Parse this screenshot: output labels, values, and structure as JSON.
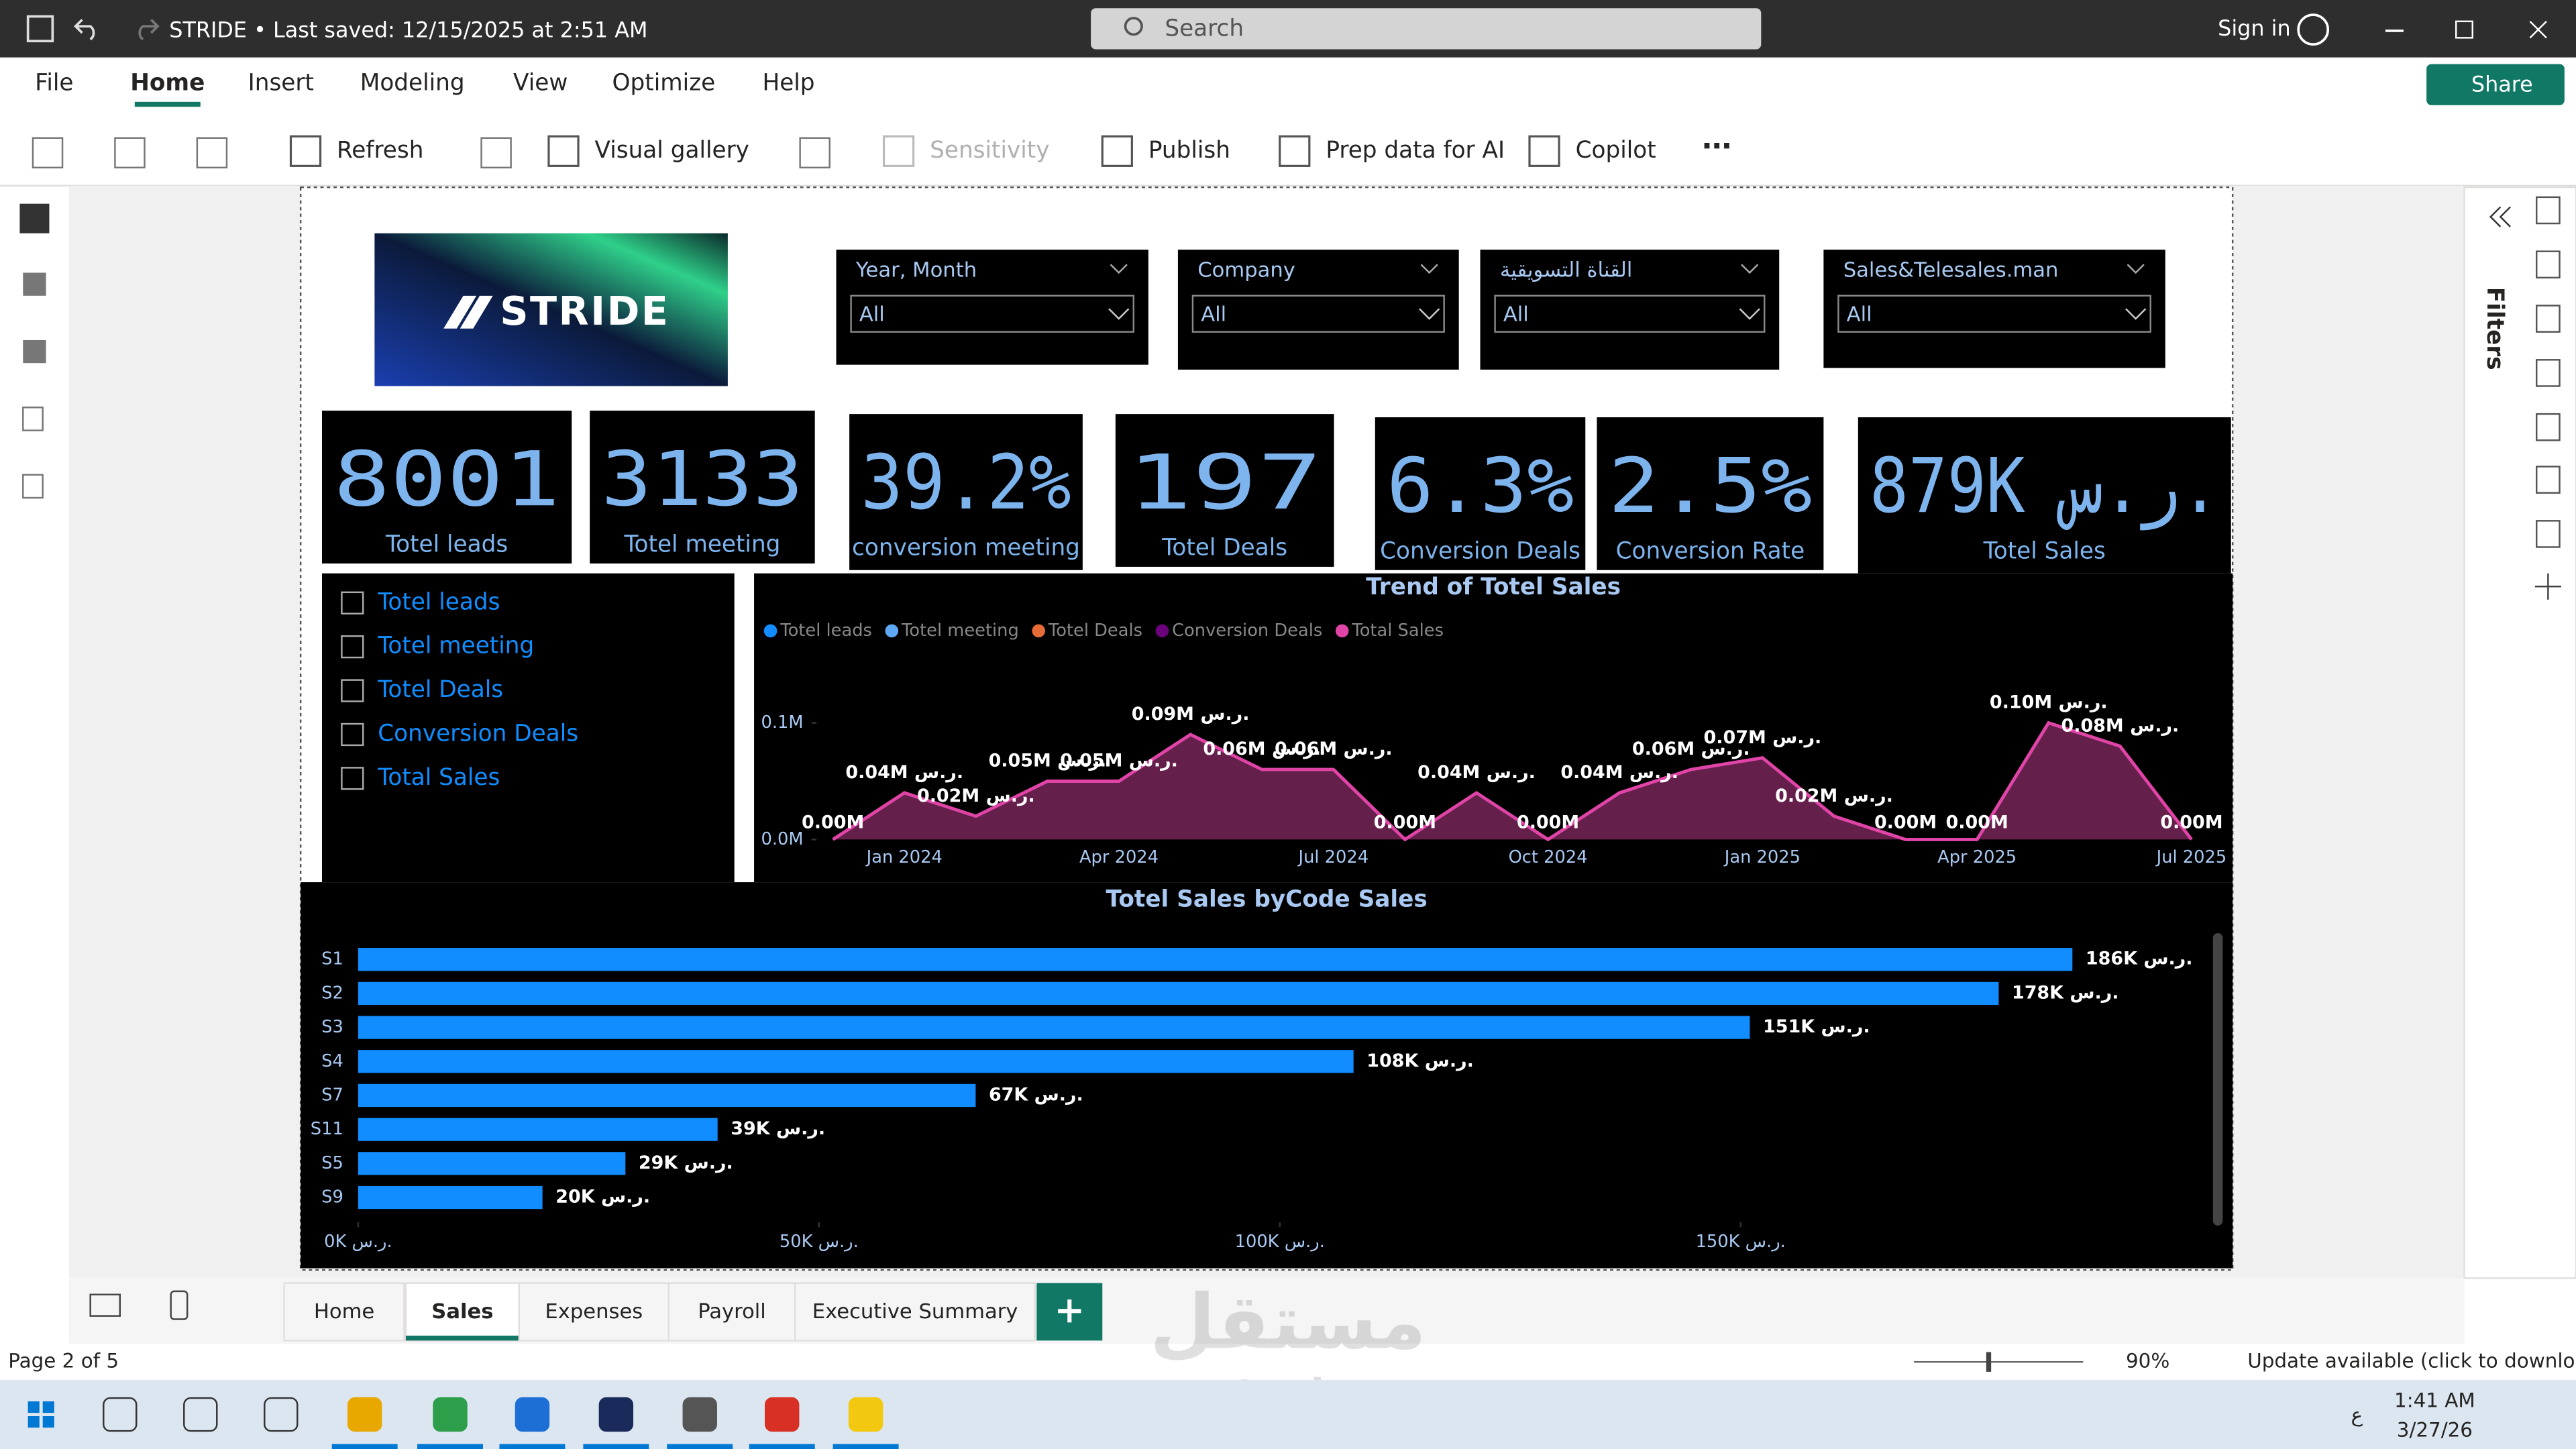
{
  "titlebar": {
    "title": "STRIDE • Last saved: 12/15/2025 at 2:51 AM",
    "search": "Search",
    "sign_in": "Sign in"
  },
  "menu": [
    "File",
    "Home",
    "Insert",
    "Modeling",
    "View",
    "Optimize",
    "Help"
  ],
  "share": "Share",
  "ribbon": [
    "Refresh",
    "Visual gallery",
    "Sensitivity",
    "Publish",
    "Prep data for AI",
    "Copilot"
  ],
  "filters": "Filters",
  "report": {
    "logo": "STRIDE",
    "slicers": [
      {
        "title": "Year, Month",
        "value": "All"
      },
      {
        "title": "Company",
        "value": "All"
      },
      {
        "title": "القناة التسويقية",
        "value": "All"
      },
      {
        "title": "Sales&Telesales.man",
        "value": "All"
      }
    ],
    "kpis": [
      {
        "value": "8001",
        "label": "Totel leads"
      },
      {
        "value": "3133",
        "label": "Totel meeting"
      },
      {
        "value": "39.2%",
        "label": "conversion meeting"
      },
      {
        "value": "197",
        "label": "Totel Deals"
      },
      {
        "value": "6.3%",
        "label": "Conversion Deals"
      },
      {
        "value": "2.5%",
        "label": "Conversion Rate"
      },
      {
        "value": "879K ر.س.",
        "label": "Totel Sales"
      }
    ],
    "fields": [
      "Totel leads",
      "Totel meeting",
      "Totel Deals",
      "Conversion Deals",
      "Total Sales"
    ]
  },
  "chart_data": [
    {
      "type": "line",
      "title": "Trend of Totel Sales",
      "legend": [
        {
          "name": "Totel leads",
          "color": "#118dff"
        },
        {
          "name": "Totel meeting",
          "color": "#5fa8f5"
        },
        {
          "name": "Totel Deals",
          "color": "#e66c37"
        },
        {
          "name": "Conversion Deals",
          "color": "#6b007b"
        },
        {
          "name": "Total Sales",
          "color": "#e044a7"
        }
      ],
      "categories": [
        null,
        "Jan 2024",
        null,
        null,
        "Apr 2024",
        null,
        null,
        "Jul 2024",
        null,
        null,
        "Oct 2024",
        null,
        null,
        "Jan 2025",
        null,
        null,
        "Apr 2025",
        null,
        null,
        "Jul 2025"
      ],
      "series": [
        {
          "name": "Total Sales",
          "color": "#e044a7",
          "values": [
            0.0,
            0.04,
            0.02,
            0.05,
            0.05,
            0.09,
            0.06,
            0.06,
            0.0,
            0.04,
            0.0,
            0.04,
            0.06,
            0.07,
            0.02,
            0.0,
            0.0,
            0.1,
            0.08,
            0.0
          ],
          "value_labels": [
            "0.00M",
            "0.04M ر.س.",
            "0.02M ر.س.",
            "0.05M ر.س.",
            "0.05M ر.س.",
            "0.09M ر.س.",
            "0.06M ر.س.",
            "0.06M ر.س.",
            "0.00M",
            "0.04M ر.س.",
            "0.00M",
            "0.04M ر.س.",
            "0.06M ر.س.",
            "0.07M ر.س.",
            "0.02M ر.س.",
            "0.00M",
            "0.00M",
            "0.10M ر.س.",
            "0.08M ر.س.",
            "0.00M"
          ]
        }
      ],
      "ylim": [
        0,
        0.15
      ],
      "yticks": [
        {
          "value": 0,
          "label": "0.0M"
        },
        {
          "value": 0.1,
          "label": "0.1M"
        }
      ],
      "grid": false
    },
    {
      "type": "bar",
      "orientation": "horizontal",
      "title": "Totel Sales byCode Sales",
      "categories": [
        "S1",
        "S2",
        "S3",
        "S4",
        "S7",
        "S11",
        "S5",
        "S9"
      ],
      "values": [
        186,
        178,
        151,
        108,
        67,
        39,
        29,
        20
      ],
      "value_labels": [
        "186K ر.س.",
        "178K ر.س.",
        "151K ر.س.",
        "108K ر.س.",
        "67K ر.س.",
        "39K ر.س.",
        "29K ر.س.",
        "20K ر.س."
      ],
      "color": "#118dff",
      "xlim": [
        0,
        200
      ],
      "xticks": [
        {
          "value": 0,
          "label": "0K ر.س."
        },
        {
          "value": 50,
          "label": "50K ر.س."
        },
        {
          "value": 100,
          "label": "100K ر.س."
        },
        {
          "value": 150,
          "label": "150K ر.س."
        }
      ],
      "grid": false
    }
  ],
  "tabs": [
    "Home",
    "Sales",
    "Expenses",
    "Payroll",
    "Executive Summary"
  ],
  "status": {
    "page": "Page 2 of 5",
    "zoom": "90%",
    "update": "Update available (click to download)"
  },
  "taskbar": {
    "time": "1:41 AM",
    "date": "3/27/26",
    "lang": "ع"
  },
  "watermark": [
    "مستقل",
    "mostaqi.com"
  ]
}
